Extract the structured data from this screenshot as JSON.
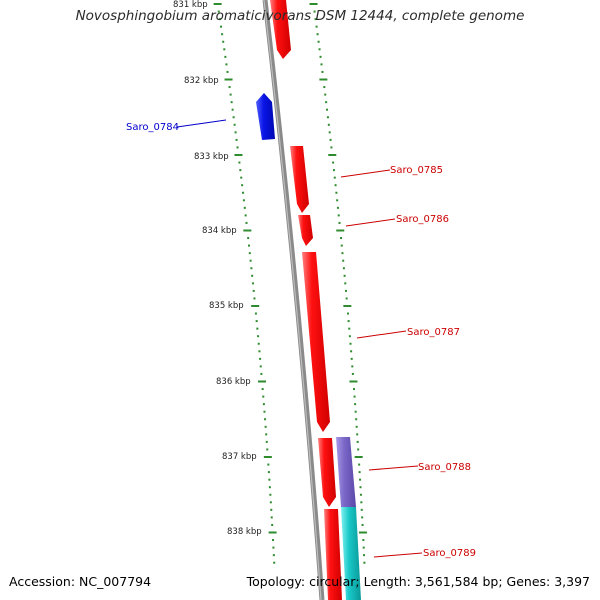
{
  "title": "Novosphingobium aromaticivorans DSM 12444, complete genome",
  "accession": "Accession: NC_007794",
  "topology": "Topology: circular; Length: 3,561,584 bp; Genes: 3,397",
  "colors": {
    "backbone": "#8a8a8a",
    "ticks": "#2e8b2e",
    "forward_gene": "#ff1010",
    "reverse_gene": "#0a14e6",
    "reverse_label": "#0000cc",
    "forward_label": "#cc0000",
    "feature_purple": "#7b68c8",
    "feature_cyan": "#19c8c8"
  },
  "scale_labels": [
    "831 kbp",
    "832 kbp",
    "833 kbp",
    "834 kbp",
    "835 kbp",
    "836 kbp",
    "837 kbp",
    "838 kbp"
  ],
  "genes": [
    {
      "label": "",
      "strand": "forward"
    },
    {
      "label": "Saro_0784",
      "strand": "reverse"
    },
    {
      "label": "Saro_0785",
      "strand": "forward"
    },
    {
      "label": "Saro_0786",
      "strand": "forward"
    },
    {
      "label": "Saro_0787",
      "strand": "forward"
    },
    {
      "label": "Saro_0788",
      "strand": "forward"
    },
    {
      "label": "Saro_0789",
      "strand": "forward"
    }
  ],
  "features": [
    {
      "name": "feature-purple",
      "color": "#7b68c8"
    },
    {
      "name": "feature-cyan",
      "color": "#19c8c8"
    }
  ]
}
